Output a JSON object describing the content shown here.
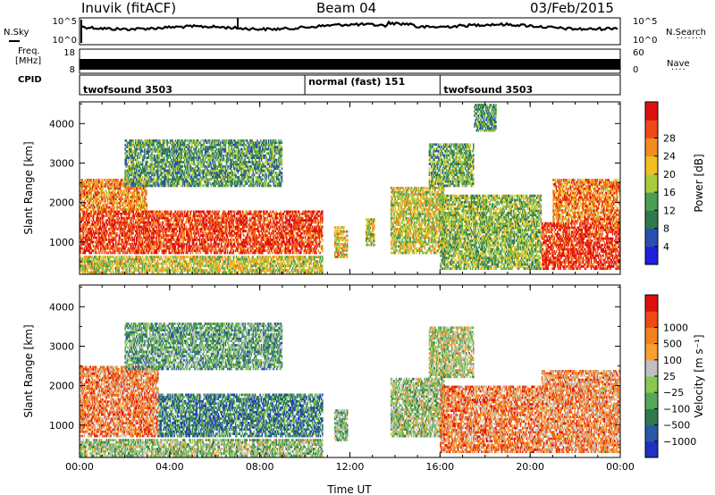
{
  "header": {
    "station": "Inuvik (fitACF)",
    "beam": "Beam 04",
    "date": "03/Feb/2015"
  },
  "panels": {
    "nsky": {
      "label": "N.Sky",
      "tick_top": "10^5",
      "tick_bottom": "10^0"
    },
    "nsearch": {
      "label": "N.Search",
      "tick_top": "10^5",
      "tick_bottom": "10^0"
    },
    "freq": {
      "label_line1": "Freq.",
      "label_line2": "[MHz]",
      "tick_top": "18",
      "tick_bottom": "8"
    },
    "nave": {
      "label": "Nave",
      "tick_top": "60",
      "tick_bottom": "0"
    },
    "cpid": {
      "label": "CPID",
      "segments": [
        {
          "name": "twofsound 3503",
          "start": 0,
          "end": 10
        },
        {
          "name": "normal (fast) 151",
          "start": 10,
          "end": 16
        },
        {
          "name": "twofsound 3503",
          "start": 16,
          "end": 24
        }
      ]
    }
  },
  "chart_data": [
    {
      "type": "heatmap",
      "title": "",
      "xlabel": "",
      "ylabel": "Slant Range [km]",
      "xlim": [
        0,
        24
      ],
      "ylim": [
        180,
        4550
      ],
      "x_ticks": [
        "00:00",
        "04:00",
        "08:00",
        "12:00",
        "16:00",
        "20:00",
        "00:00"
      ],
      "y_ticks": [
        1000,
        2000,
        3000,
        4000
      ],
      "colorbar": {
        "label": "Power [dB]",
        "ticks": [
          "4",
          "8",
          "12",
          "16",
          "20",
          "24",
          "28"
        ],
        "colors": [
          "#1f1fe0",
          "#2a4fb0",
          "#2e7a4e",
          "#4aa050",
          "#a8cc3c",
          "#f0c020",
          "#f58b20",
          "#ee4a16",
          "#e01010"
        ]
      },
      "regions": [
        {
          "t0": 0.0,
          "t1": 10.8,
          "r0": 700,
          "r1": 1800,
          "level": 0.88
        },
        {
          "t0": 0.0,
          "t1": 3.0,
          "r0": 1800,
          "r1": 2600,
          "level": 0.72
        },
        {
          "t0": 0.0,
          "t1": 10.8,
          "r0": 200,
          "r1": 650,
          "level": 0.55
        },
        {
          "t0": 11.3,
          "t1": 11.9,
          "r0": 600,
          "r1": 1400,
          "level": 0.6
        },
        {
          "t0": 12.7,
          "t1": 13.1,
          "r0": 900,
          "r1": 1600,
          "level": 0.5
        },
        {
          "t0": 13.8,
          "t1": 16.2,
          "r0": 700,
          "r1": 2400,
          "level": 0.55
        },
        {
          "t0": 15.5,
          "t1": 17.5,
          "r0": 2400,
          "r1": 3500,
          "level": 0.4
        },
        {
          "t0": 16.0,
          "t1": 20.5,
          "r0": 300,
          "r1": 2200,
          "level": 0.45
        },
        {
          "t0": 20.5,
          "t1": 24.0,
          "r0": 300,
          "r1": 1500,
          "level": 0.9
        },
        {
          "t0": 21.0,
          "t1": 24.0,
          "r0": 1500,
          "r1": 2600,
          "level": 0.75
        },
        {
          "t0": 2.0,
          "t1": 9.0,
          "r0": 2400,
          "r1": 3600,
          "level": 0.35
        },
        {
          "t0": 17.5,
          "t1": 18.5,
          "r0": 3800,
          "r1": 4500,
          "level": 0.35
        }
      ]
    },
    {
      "type": "heatmap",
      "title": "",
      "xlabel": "Time UT",
      "ylabel": "Slant Range [km]",
      "xlim": [
        0,
        24
      ],
      "ylim": [
        180,
        4550
      ],
      "x_ticks": [
        "00:00",
        "04:00",
        "08:00",
        "12:00",
        "16:00",
        "20:00",
        "00:00"
      ],
      "y_ticks": [
        1000,
        2000,
        3000,
        4000
      ],
      "colorbar": {
        "label": "Velocity [m s⁻¹]",
        "ticks": [
          "1000",
          "500",
          "100",
          "25",
          "−25",
          "−100",
          "−500",
          "−1000"
        ],
        "colors": [
          "#2030c0",
          "#2858a8",
          "#2e7a4e",
          "#55a858",
          "#88c850",
          "#c0c0c0",
          "#f5a030",
          "#f58020",
          "#ee4a16",
          "#e01010"
        ]
      },
      "regions": [
        {
          "t0": 0.0,
          "t1": 3.5,
          "r0": 700,
          "r1": 2500,
          "level": 0.75
        },
        {
          "t0": 3.5,
          "t1": 10.8,
          "r0": 700,
          "r1": 1800,
          "level": 0.25
        },
        {
          "t0": 0.0,
          "t1": 10.8,
          "r0": 200,
          "r1": 650,
          "level": 0.45
        },
        {
          "t0": 11.3,
          "t1": 11.9,
          "r0": 600,
          "r1": 1400,
          "level": 0.4
        },
        {
          "t0": 13.8,
          "t1": 16.2,
          "r0": 700,
          "r1": 2200,
          "level": 0.45
        },
        {
          "t0": 15.5,
          "t1": 17.5,
          "r0": 2200,
          "r1": 3500,
          "level": 0.5
        },
        {
          "t0": 16.0,
          "t1": 20.5,
          "r0": 300,
          "r1": 2000,
          "level": 0.75
        },
        {
          "t0": 20.5,
          "t1": 24.0,
          "r0": 300,
          "r1": 2400,
          "level": 0.72
        },
        {
          "t0": 2.0,
          "t1": 9.0,
          "r0": 2400,
          "r1": 3600,
          "level": 0.35
        }
      ]
    }
  ]
}
